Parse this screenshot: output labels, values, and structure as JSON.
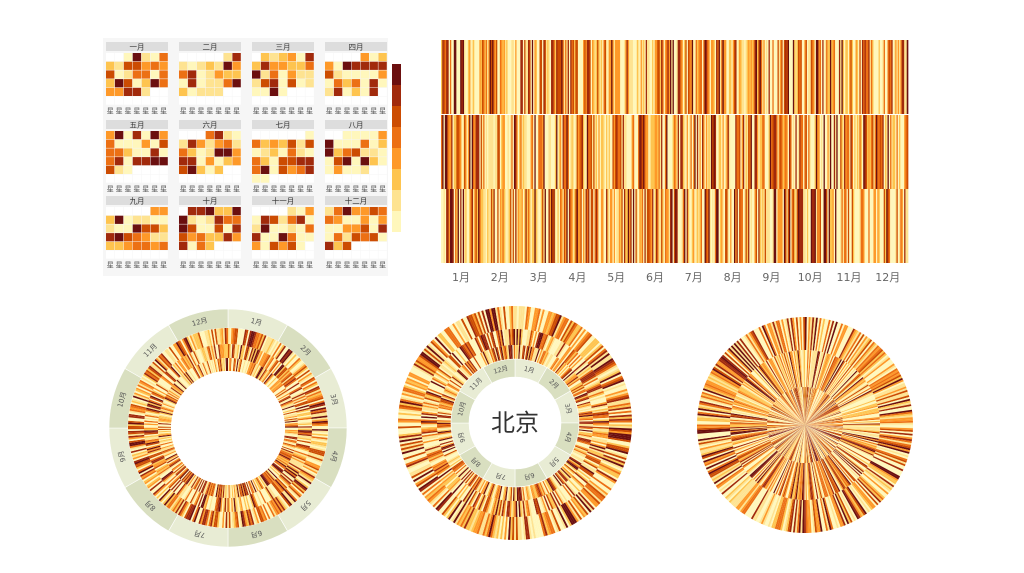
{
  "palette": [
    "#fff7bc",
    "#fee391",
    "#fec44f",
    "#fe9929",
    "#ec7014",
    "#cc4c02",
    "#a12a0c",
    "#6b0f0f"
  ],
  "calendar_panel": {
    "month_titles": [
      "一月",
      "二月",
      "三月",
      "四月",
      "五月",
      "六月",
      "七月",
      "八月",
      "九月",
      "十月",
      "十一月",
      "十二月"
    ],
    "weekday_label": "星",
    "legend_levels": 8
  },
  "ring_a": {
    "month_labels": [
      "1月",
      "2月",
      "3月",
      "4月",
      "5月",
      "6月",
      "7月",
      "8月",
      "9月",
      "10月",
      "11月",
      "12月"
    ]
  },
  "ring_b": {
    "center_label": "北京",
    "month_labels": [
      "1月",
      "2月",
      "3月",
      "4月",
      "5月",
      "6月",
      "7月",
      "8月",
      "9月",
      "10月",
      "11月",
      "12月"
    ]
  },
  "chart_data": [
    {
      "type": "heatmap",
      "subtype": "calendar",
      "title": "",
      "months": [
        "一月",
        "二月",
        "三月",
        "四月",
        "五月",
        "六月",
        "七月",
        "八月",
        "九月",
        "十月",
        "十一月",
        "十二月"
      ],
      "note": "daily cells colored by level on an 8-step yellow-orange-red scale"
    },
    {
      "type": "heatmap",
      "subtype": "strip",
      "title": "",
      "rows": 3,
      "columns": 365,
      "x_ticks": [
        "1月",
        "2月",
        "3月",
        "4月",
        "5月",
        "6月",
        "7月",
        "8月",
        "9月",
        "10月",
        "11月",
        "12月"
      ],
      "grid": false
    },
    {
      "type": "heatmap",
      "subtype": "radial-ring",
      "title": "",
      "rings": 3,
      "month_labels": [
        "1月",
        "2月",
        "3月",
        "4月",
        "5月",
        "6月",
        "7月",
        "8月",
        "9月",
        "10月",
        "11月",
        "12月"
      ],
      "label_ring": "outer"
    },
    {
      "type": "heatmap",
      "subtype": "radial-ring",
      "title": "",
      "center_label": "北京",
      "rings": 3,
      "month_labels": [
        "1月",
        "2月",
        "3月",
        "4月",
        "5月",
        "6月",
        "7月",
        "8月",
        "9月",
        "10月",
        "11月",
        "12月"
      ],
      "label_ring": "inner"
    },
    {
      "type": "heatmap",
      "subtype": "radial-pie",
      "title": "",
      "rings": 3
    }
  ]
}
